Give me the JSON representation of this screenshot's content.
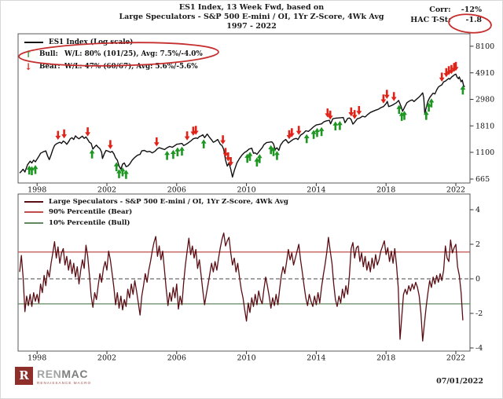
{
  "header": {
    "title_line1": "ES1 Index, 13 Week Fwd, based on",
    "title_line2": "Large Speculators - S&P 500 E-mini / OI, 1Yr Z-Score, 4Wk Avg",
    "title_line3": "1997 - 2022",
    "corr_label": "Corr:",
    "corr_value": "-12%",
    "hac_label": "HAC T-St:",
    "hac_value": "-1.8"
  },
  "top_chart": {
    "legend": {
      "series_label": "ES1 Index (Log scale)",
      "bull_arrow": "↑",
      "bull_name": "Bull:",
      "bull_stats": "W/L: 80% (101/25), Avg: 7.5%/-4.0%",
      "bear_arrow": "↓",
      "bear_name": "Bear:",
      "bear_stats": "W/L: 47% (60/67), Avg: 5.6%/-5.6%"
    }
  },
  "bottom_chart": {
    "legend": {
      "series_label": "Large Speculators - S&P 500 E-mini / OI, 1Yr Z-Score, 4Wk Avg",
      "p90_label": "90% Percentile (Bear)",
      "p10_label": "10% Percentile (Bull)"
    }
  },
  "footer": {
    "logo_r": "R",
    "logo_ren": "REN",
    "logo_mac": "MAC",
    "logo_tagline": "RENAISSANCE MACRO",
    "date": "07/01/2022"
  },
  "colors": {
    "price_line": "#111111",
    "bull": "#1e9622",
    "bear": "#e02318",
    "z_line": "#5a0e14",
    "p90": "#bf4d4a",
    "p10": "#618a61",
    "annotation": "#c62f2f",
    "frame": "#5a5a5a",
    "logo_maroon": "#8e2f2b"
  },
  "chart_data": [
    {
      "type": "line",
      "title": "ES1 Index (Log scale)",
      "log_scale": true,
      "xlim": [
        1997,
        2022.55
      ],
      "x_ticks": [
        1998,
        2002,
        2006,
        2010,
        2014,
        2018,
        2022
      ],
      "y_ticks": [
        8100,
        4910,
        2980,
        1810,
        1100,
        665
      ],
      "series": [
        [
          1997.0,
          745
        ],
        [
          1997.1,
          770
        ],
        [
          1997.2,
          800
        ],
        [
          1997.3,
          760
        ],
        [
          1997.45,
          870
        ],
        [
          1997.6,
          930
        ],
        [
          1997.7,
          900
        ],
        [
          1997.8,
          950
        ],
        [
          1997.9,
          920
        ],
        [
          1998.0,
          970
        ],
        [
          1998.1,
          1020
        ],
        [
          1998.2,
          1080
        ],
        [
          1998.35,
          1110
        ],
        [
          1998.5,
          1130
        ],
        [
          1998.6,
          1030
        ],
        [
          1998.7,
          960
        ],
        [
          1998.8,
          1050
        ],
        [
          1998.9,
          1160
        ],
        [
          1999.0,
          1250
        ],
        [
          1999.1,
          1290
        ],
        [
          1999.2,
          1310
        ],
        [
          1999.3,
          1330
        ],
        [
          1999.4,
          1300
        ],
        [
          1999.5,
          1360
        ],
        [
          1999.6,
          1330
        ],
        [
          1999.7,
          1280
        ],
        [
          1999.8,
          1340
        ],
        [
          1999.9,
          1420
        ],
        [
          2000.0,
          1450
        ],
        [
          2000.1,
          1400
        ],
        [
          2000.2,
          1500
        ],
        [
          2000.3,
          1450
        ],
        [
          2000.4,
          1420
        ],
        [
          2000.5,
          1460
        ],
        [
          2000.6,
          1490
        ],
        [
          2000.7,
          1430
        ],
        [
          2000.8,
          1470
        ],
        [
          2000.9,
          1400
        ],
        [
          2001.0,
          1330
        ],
        [
          2001.1,
          1300
        ],
        [
          2001.2,
          1170
        ],
        [
          2001.3,
          1220
        ],
        [
          2001.4,
          1260
        ],
        [
          2001.5,
          1210
        ],
        [
          2001.6,
          1180
        ],
        [
          2001.7,
          1100
        ],
        [
          2001.75,
          980
        ],
        [
          2001.85,
          1070
        ],
        [
          2001.95,
          1140
        ],
        [
          2002.1,
          1120
        ],
        [
          2002.2,
          1100
        ],
        [
          2002.3,
          1120
        ],
        [
          2002.4,
          1070
        ],
        [
          2002.5,
          990
        ],
        [
          2002.6,
          950
        ],
        [
          2002.7,
          850
        ],
        [
          2002.8,
          800
        ],
        [
          2002.9,
          880
        ],
        [
          2003.0,
          900
        ],
        [
          2003.1,
          840
        ],
        [
          2003.2,
          850
        ],
        [
          2003.3,
          880
        ],
        [
          2003.45,
          950
        ],
        [
          2003.6,
          1000
        ],
        [
          2003.75,
          1040
        ],
        [
          2003.9,
          1060
        ],
        [
          2004.0,
          1130
        ],
        [
          2004.15,
          1140
        ],
        [
          2004.3,
          1110
        ],
        [
          2004.45,
          1120
        ],
        [
          2004.6,
          1090
        ],
        [
          2004.75,
          1120
        ],
        [
          2004.9,
          1180
        ],
        [
          2005.0,
          1200
        ],
        [
          2005.15,
          1180
        ],
        [
          2005.3,
          1160
        ],
        [
          2005.45,
          1200
        ],
        [
          2005.6,
          1230
        ],
        [
          2005.75,
          1210
        ],
        [
          2005.9,
          1250
        ],
        [
          2006.0,
          1280
        ],
        [
          2006.15,
          1290
        ],
        [
          2006.3,
          1300
        ],
        [
          2006.4,
          1250
        ],
        [
          2006.5,
          1270
        ],
        [
          2006.65,
          1310
        ],
        [
          2006.8,
          1360
        ],
        [
          2006.95,
          1420
        ],
        [
          2007.1,
          1440
        ],
        [
          2007.2,
          1430
        ],
        [
          2007.3,
          1480
        ],
        [
          2007.4,
          1500
        ],
        [
          2007.5,
          1530
        ],
        [
          2007.6,
          1450
        ],
        [
          2007.75,
          1550
        ],
        [
          2007.85,
          1480
        ],
        [
          2008.0,
          1390
        ],
        [
          2008.1,
          1330
        ],
        [
          2008.2,
          1350
        ],
        [
          2008.35,
          1400
        ],
        [
          2008.5,
          1280
        ],
        [
          2008.6,
          1250
        ],
        [
          2008.7,
          1160
        ],
        [
          2008.8,
          950
        ],
        [
          2008.9,
          850
        ],
        [
          2009.0,
          900
        ],
        [
          2009.1,
          800
        ],
        [
          2009.2,
          690
        ],
        [
          2009.3,
          780
        ],
        [
          2009.45,
          900
        ],
        [
          2009.6,
          980
        ],
        [
          2009.75,
          1050
        ],
        [
          2009.9,
          1100
        ],
        [
          2010.0,
          1120
        ],
        [
          2010.15,
          1170
        ],
        [
          2010.3,
          1190
        ],
        [
          2010.4,
          1080
        ],
        [
          2010.5,
          1090
        ],
        [
          2010.6,
          1060
        ],
        [
          2010.75,
          1130
        ],
        [
          2010.9,
          1200
        ],
        [
          2011.0,
          1270
        ],
        [
          2011.15,
          1320
        ],
        [
          2011.3,
          1330
        ],
        [
          2011.45,
          1340
        ],
        [
          2011.55,
          1290
        ],
        [
          2011.65,
          1160
        ],
        [
          2011.75,
          1200
        ],
        [
          2011.85,
          1140
        ],
        [
          2011.95,
          1260
        ],
        [
          2012.1,
          1350
        ],
        [
          2012.25,
          1400
        ],
        [
          2012.4,
          1310
        ],
        [
          2012.55,
          1360
        ],
        [
          2012.7,
          1410
        ],
        [
          2012.85,
          1430
        ],
        [
          2012.95,
          1400
        ],
        [
          2013.1,
          1520
        ],
        [
          2013.25,
          1570
        ],
        [
          2013.4,
          1650
        ],
        [
          2013.55,
          1630
        ],
        [
          2013.7,
          1700
        ],
        [
          2013.85,
          1780
        ],
        [
          2014.0,
          1840
        ],
        [
          2014.15,
          1860
        ],
        [
          2014.3,
          1880
        ],
        [
          2014.45,
          1960
        ],
        [
          2014.6,
          1990
        ],
        [
          2014.75,
          2010
        ],
        [
          2014.82,
          1880
        ],
        [
          2014.95,
          2070
        ],
        [
          2015.1,
          2090
        ],
        [
          2015.25,
          2100
        ],
        [
          2015.4,
          2110
        ],
        [
          2015.55,
          2120
        ],
        [
          2015.65,
          1920
        ],
        [
          2015.8,
          2080
        ],
        [
          2015.9,
          2100
        ],
        [
          2016.0,
          2040
        ],
        [
          2016.1,
          1870
        ],
        [
          2016.2,
          1940
        ],
        [
          2016.35,
          2070
        ],
        [
          2016.5,
          2100
        ],
        [
          2016.65,
          2170
        ],
        [
          2016.8,
          2140
        ],
        [
          2016.95,
          2240
        ],
        [
          2017.1,
          2330
        ],
        [
          2017.25,
          2380
        ],
        [
          2017.4,
          2430
        ],
        [
          2017.55,
          2470
        ],
        [
          2017.7,
          2550
        ],
        [
          2017.85,
          2600
        ],
        [
          2018.0,
          2750
        ],
        [
          2018.07,
          2870
        ],
        [
          2018.15,
          2600
        ],
        [
          2018.3,
          2650
        ],
        [
          2018.45,
          2720
        ],
        [
          2018.6,
          2800
        ],
        [
          2018.72,
          2920
        ],
        [
          2018.85,
          2630
        ],
        [
          2018.95,
          2380
        ],
        [
          2019.05,
          2550
        ],
        [
          2019.2,
          2800
        ],
        [
          2019.35,
          2900
        ],
        [
          2019.5,
          2950
        ],
        [
          2019.6,
          2860
        ],
        [
          2019.75,
          2990
        ],
        [
          2019.9,
          3120
        ],
        [
          2020.0,
          3240
        ],
        [
          2020.1,
          3370
        ],
        [
          2020.16,
          3050
        ],
        [
          2020.22,
          2280
        ],
        [
          2020.3,
          2550
        ],
        [
          2020.4,
          2880
        ],
        [
          2020.5,
          3080
        ],
        [
          2020.6,
          3220
        ],
        [
          2020.7,
          3350
        ],
        [
          2020.8,
          3300
        ],
        [
          2020.9,
          3560
        ],
        [
          2021.0,
          3760
        ],
        [
          2021.1,
          3850
        ],
        [
          2021.2,
          3920
        ],
        [
          2021.3,
          4150
        ],
        [
          2021.4,
          4200
        ],
        [
          2021.5,
          4320
        ],
        [
          2021.6,
          4420
        ],
        [
          2021.65,
          4350
        ],
        [
          2021.75,
          4520
        ],
        [
          2021.85,
          4650
        ],
        [
          2021.95,
          4760
        ],
        [
          2022.0,
          4790
        ],
        [
          2022.07,
          4520
        ],
        [
          2022.15,
          4400
        ],
        [
          2022.2,
          4540
        ],
        [
          2022.3,
          4150
        ],
        [
          2022.37,
          4280
        ],
        [
          2022.45,
          3820
        ],
        [
          2022.52,
          3790
        ]
      ],
      "signals": {
        "bull": [
          1997.55,
          1997.7,
          1997.9,
          2001.15,
          2002.55,
          2002.7,
          2002.9,
          2003.1,
          2005.45,
          2005.8,
          2006.05,
          2006.3,
          2007.55,
          2010.05,
          2010.2,
          2010.6,
          2010.75,
          2011.4,
          2011.55,
          2011.75,
          2013.45,
          2013.85,
          2014.05,
          2014.3,
          2015.1,
          2015.35,
          2018.75,
          2018.9,
          2019.05,
          2020.3,
          2020.45,
          2020.6,
          2022.4
        ],
        "bear": [
          1999.2,
          1999.55,
          2000.9,
          2002.2,
          2004.85,
          2006.6,
          2006.95,
          2007.1,
          2008.65,
          2008.8,
          2008.95,
          2009.1,
          2012.45,
          2012.6,
          2013.0,
          2014.65,
          2014.8,
          2016.0,
          2016.2,
          2016.45,
          2017.85,
          2018.05,
          2018.45,
          2021.2,
          2021.45,
          2021.6,
          2021.75,
          2021.9,
          2022.0
        ]
      }
    },
    {
      "type": "line",
      "title": "Large Speculators - S&P 500 E-mini / OI, 1Yr Z-Score, 4Wk Avg",
      "xlim": [
        1997,
        2022.55
      ],
      "ylim": [
        -4.3,
        4.6
      ],
      "x_ticks": [
        1998,
        2002,
        2006,
        2010,
        2014,
        2018,
        2022
      ],
      "y_ticks": [
        4,
        2,
        0,
        -2,
        -4
      ],
      "p90": 1.55,
      "p10": -1.45,
      "zero_line": 0,
      "series": {
        "start": 1997.0,
        "step": 0.1,
        "values": [
          0.4,
          1.35,
          0.1,
          -1.9,
          -1.0,
          -1.55,
          -0.9,
          -1.6,
          -0.8,
          -1.3,
          -0.9,
          -1.4,
          -0.3,
          -0.8,
          0.2,
          -0.4,
          0.5,
          0.1,
          0.9,
          1.5,
          2.15,
          1.2,
          1.85,
          0.9,
          1.5,
          1.75,
          0.8,
          1.3,
          0.5,
          1.1,
          0.3,
          0.9,
          0.1,
          0.7,
          -0.3,
          0.5,
          1.1,
          0.6,
          1.95,
          1.3,
          0.2,
          -1.0,
          -1.65,
          -0.8,
          -1.2,
          -0.4,
          0.3,
          -0.2,
          0.6,
          1.0,
          0.5,
          1.6,
          1.1,
          0.3,
          -0.5,
          -1.5,
          -0.8,
          -1.7,
          -1.0,
          -1.8,
          -1.2,
          -1.6,
          -0.6,
          -1.1,
          -0.3,
          -0.9,
          -0.1,
          -0.7,
          -1.4,
          -2.1,
          -1.0,
          -0.4,
          0.3,
          -0.2,
          0.5,
          1.0,
          1.6,
          2.1,
          2.45,
          1.3,
          1.9,
          1.1,
          1.6,
          0.5,
          -0.6,
          -1.55,
          -0.8,
          -1.3,
          -0.5,
          -1.1,
          -0.3,
          -1.75,
          -1.0,
          -1.5,
          -0.2,
          0.8,
          1.6,
          2.35,
          1.4,
          1.9,
          1.2,
          1.7,
          0.6,
          1.1,
          0.2,
          -0.7,
          -1.5,
          -0.9,
          -0.3,
          0.3,
          0.9,
          0.4,
          1.0,
          0.5,
          1.2,
          1.8,
          2.3,
          2.65,
          1.9,
          2.2,
          2.4,
          1.5,
          0.8,
          1.2,
          0.4,
          0.9,
          0.1,
          -0.6,
          -1.1,
          -1.8,
          -2.45,
          -1.4,
          -1.95,
          -1.1,
          -1.6,
          -0.9,
          -1.5,
          -0.7,
          -1.2,
          -1.45,
          -0.6,
          0.1,
          -0.4,
          -1.0,
          -1.7,
          -1.1,
          -1.55,
          -0.9,
          -1.5,
          -0.6,
          0.2,
          0.7,
          0.3,
          1.0,
          1.7,
          1.1,
          1.5,
          0.8,
          1.2,
          1.6,
          2.0,
          1.1,
          0.4,
          -0.4,
          -1.1,
          -1.55,
          -0.9,
          -1.3,
          -1.6,
          -1.0,
          -1.5,
          -0.8,
          -1.4,
          -0.5,
          0.2,
          0.8,
          1.5,
          2.4,
          1.6,
          0.9,
          -0.3,
          -1.2,
          -1.6,
          -1.0,
          -1.4,
          -0.6,
          -1.1,
          -0.4,
          -0.9,
          0.2,
          1.75,
          2.1,
          1.2,
          1.8,
          1.9,
          1.0,
          1.5,
          0.7,
          1.3,
          0.5,
          1.0,
          0.4,
          1.2,
          0.6,
          1.4,
          0.8,
          1.1,
          1.6,
          1.9,
          2.2,
          1.4,
          1.8,
          1.0,
          1.6,
          0.9,
          1.75,
          0.8,
          -0.5,
          -3.5,
          -2.2,
          -0.9,
          -0.6,
          -0.9,
          -0.4,
          -0.7,
          -0.3,
          -0.6,
          -0.2,
          -0.5,
          -1.0,
          -2.0,
          -3.6,
          -2.6,
          -1.6,
          -0.8,
          -0.1,
          -0.5,
          0.1,
          -0.3,
          0.2,
          -0.2,
          0.3,
          -0.1,
          0.5,
          1.9,
          1.2,
          1.0,
          2.25,
          1.5,
          1.8,
          2.0,
          0.7,
          0.2,
          -0.8,
          -2.4
        ]
      }
    }
  ]
}
